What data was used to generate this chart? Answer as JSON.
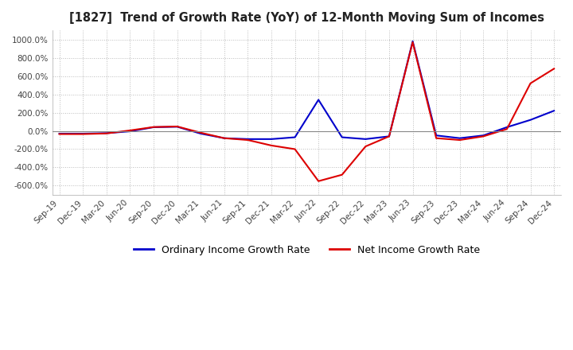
{
  "title": "[1827]  Trend of Growth Rate (YoY) of 12-Month Moving Sum of Incomes",
  "ylim": [
    -700,
    1100
  ],
  "yticks": [
    -600,
    -400,
    -200,
    0,
    200,
    400,
    600,
    800,
    1000
  ],
  "background_color": "#ffffff",
  "plot_background": "#ffffff",
  "grid_color": "#bbbbbb",
  "ordinary_color": "#0000cc",
  "net_color": "#dd0000",
  "legend_ordinary": "Ordinary Income Growth Rate",
  "legend_net": "Net Income Growth Rate",
  "x_labels": [
    "Sep-19",
    "Dec-19",
    "Mar-20",
    "Jun-20",
    "Sep-20",
    "Dec-20",
    "Mar-21",
    "Jun-21",
    "Sep-21",
    "Dec-21",
    "Mar-22",
    "Jun-22",
    "Sep-22",
    "Dec-22",
    "Mar-23",
    "Jun-23",
    "Sep-23",
    "Dec-23",
    "Mar-24",
    "Jun-24",
    "Sep-24",
    "Dec-24"
  ],
  "ordinary_values": [
    -30,
    -30,
    -25,
    -5,
    40,
    45,
    -30,
    -80,
    -90,
    -90,
    -70,
    340,
    -70,
    -90,
    -60,
    980,
    -50,
    -80,
    -50,
    40,
    120,
    220
  ],
  "net_values": [
    -35,
    -35,
    -28,
    5,
    42,
    48,
    -20,
    -80,
    -100,
    -160,
    -200,
    -550,
    -480,
    -170,
    -60,
    970,
    -80,
    -100,
    -60,
    20,
    520,
    680
  ]
}
